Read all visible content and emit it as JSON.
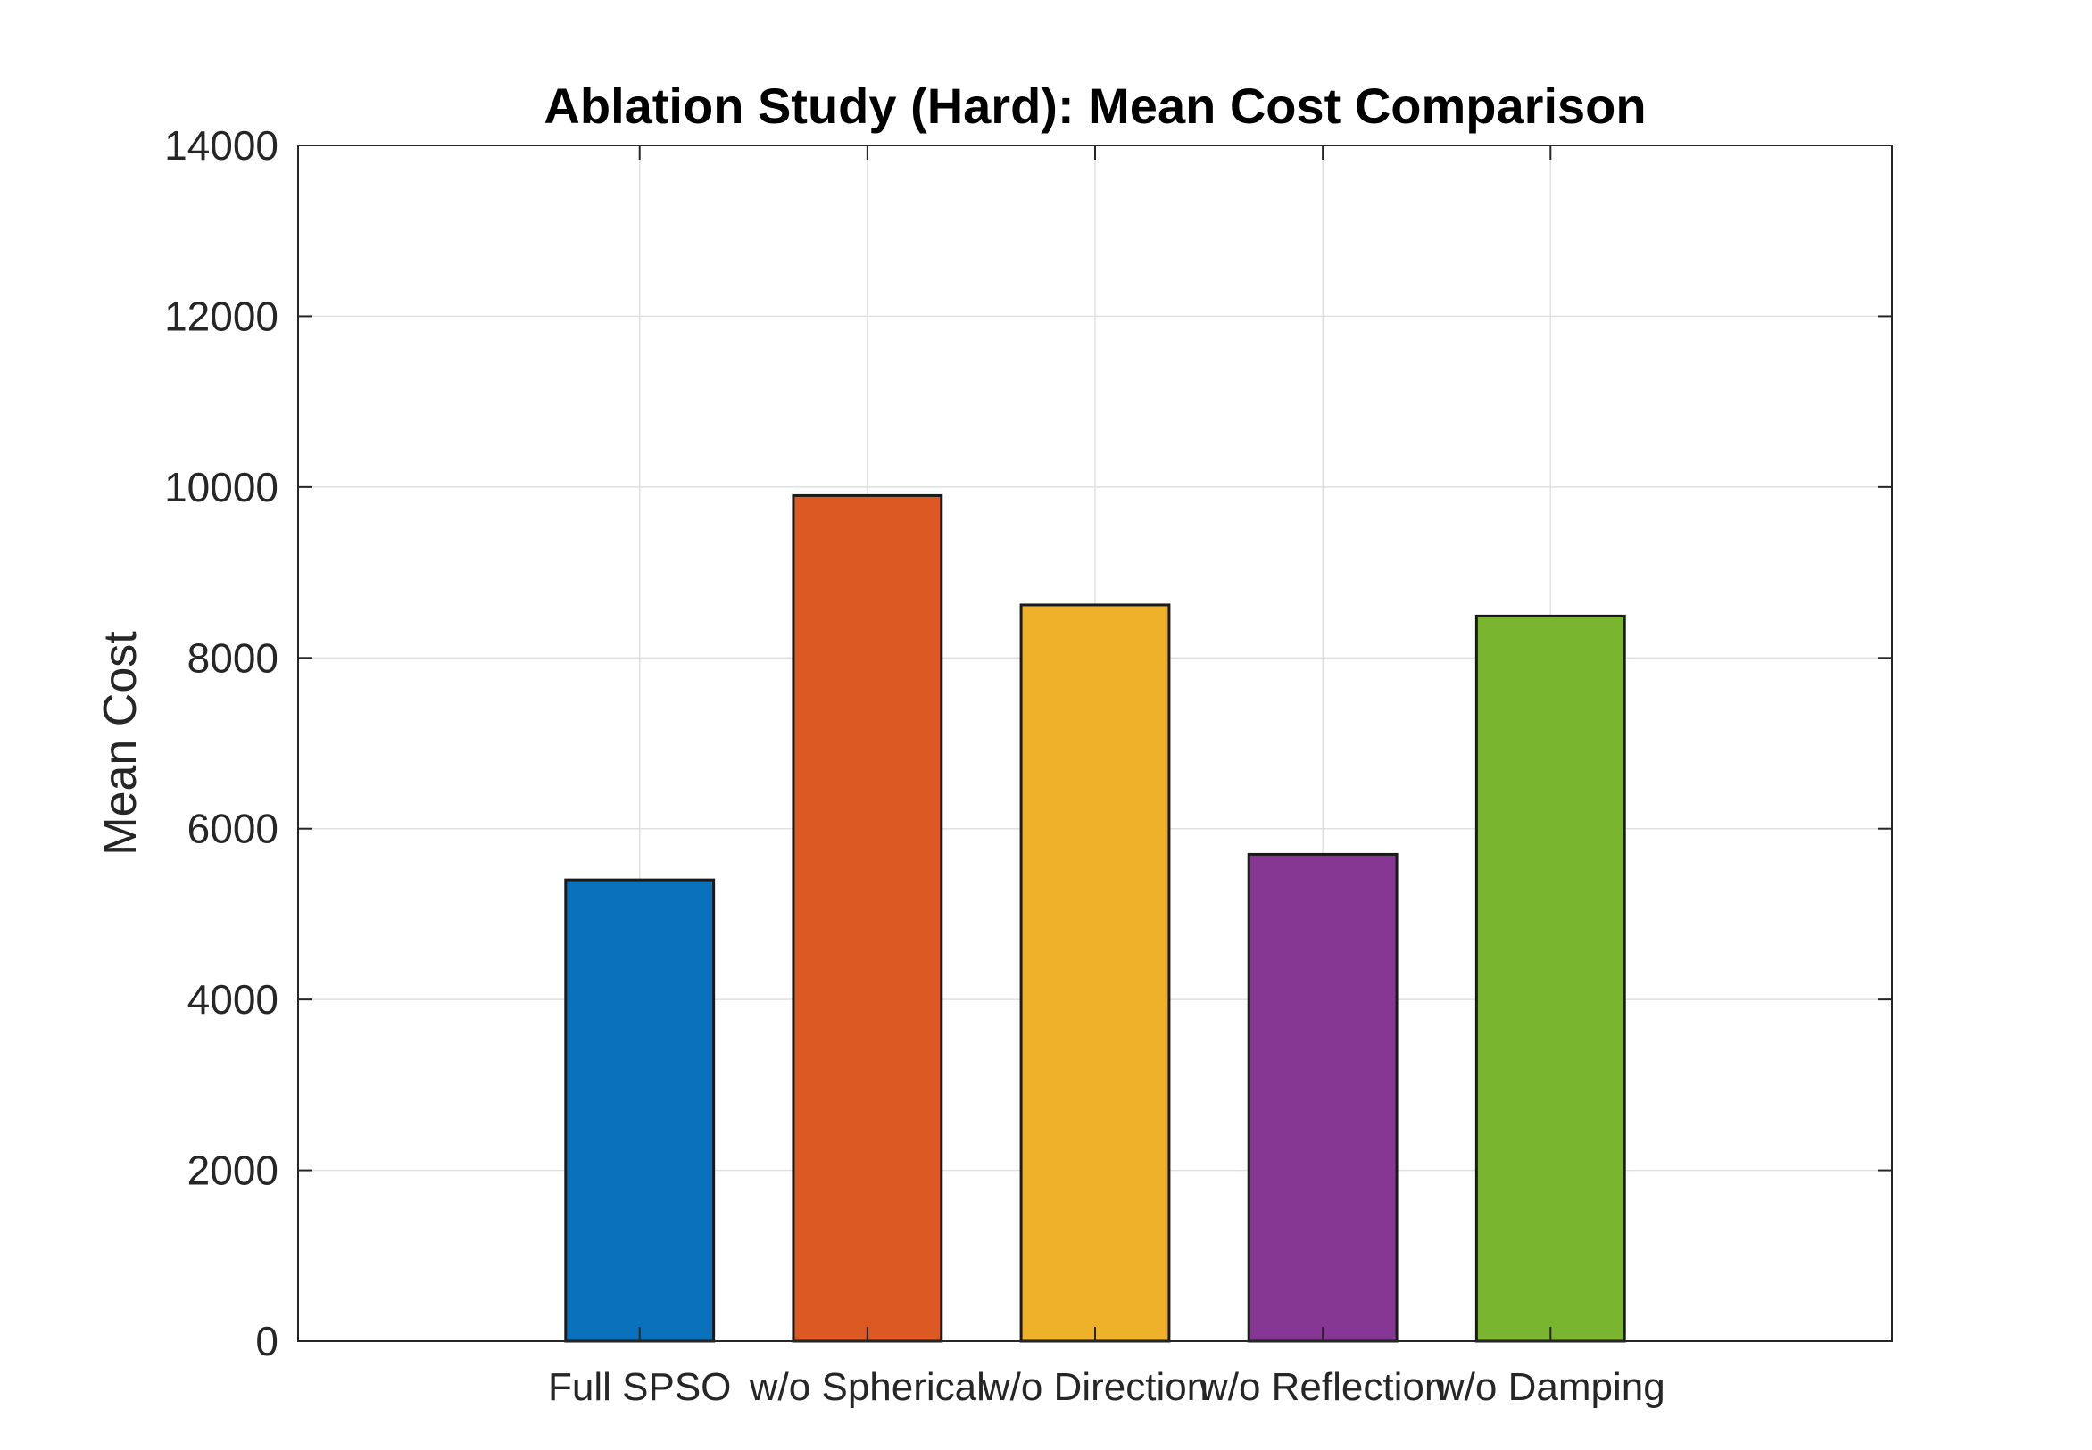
{
  "chart_data": {
    "type": "bar",
    "title": "Ablation Study (Hard): Mean Cost Comparison",
    "xlabel": "",
    "ylabel": "Mean Cost",
    "categories": [
      "Full SPSO",
      "w/o Spherical",
      "w/o Direction",
      "w/o Reflection",
      "w/o Damping"
    ],
    "values": [
      5400,
      9900,
      8620,
      5700,
      8490
    ],
    "bar_colors": [
      "#0a72bd",
      "#dc5a22",
      "#efb12a",
      "#863794",
      "#79b52f"
    ],
    "ylim": [
      0,
      14000
    ],
    "yticks": [
      0,
      2000,
      4000,
      6000,
      8000,
      10000,
      12000,
      14000
    ],
    "grid": true,
    "legend": "none"
  }
}
